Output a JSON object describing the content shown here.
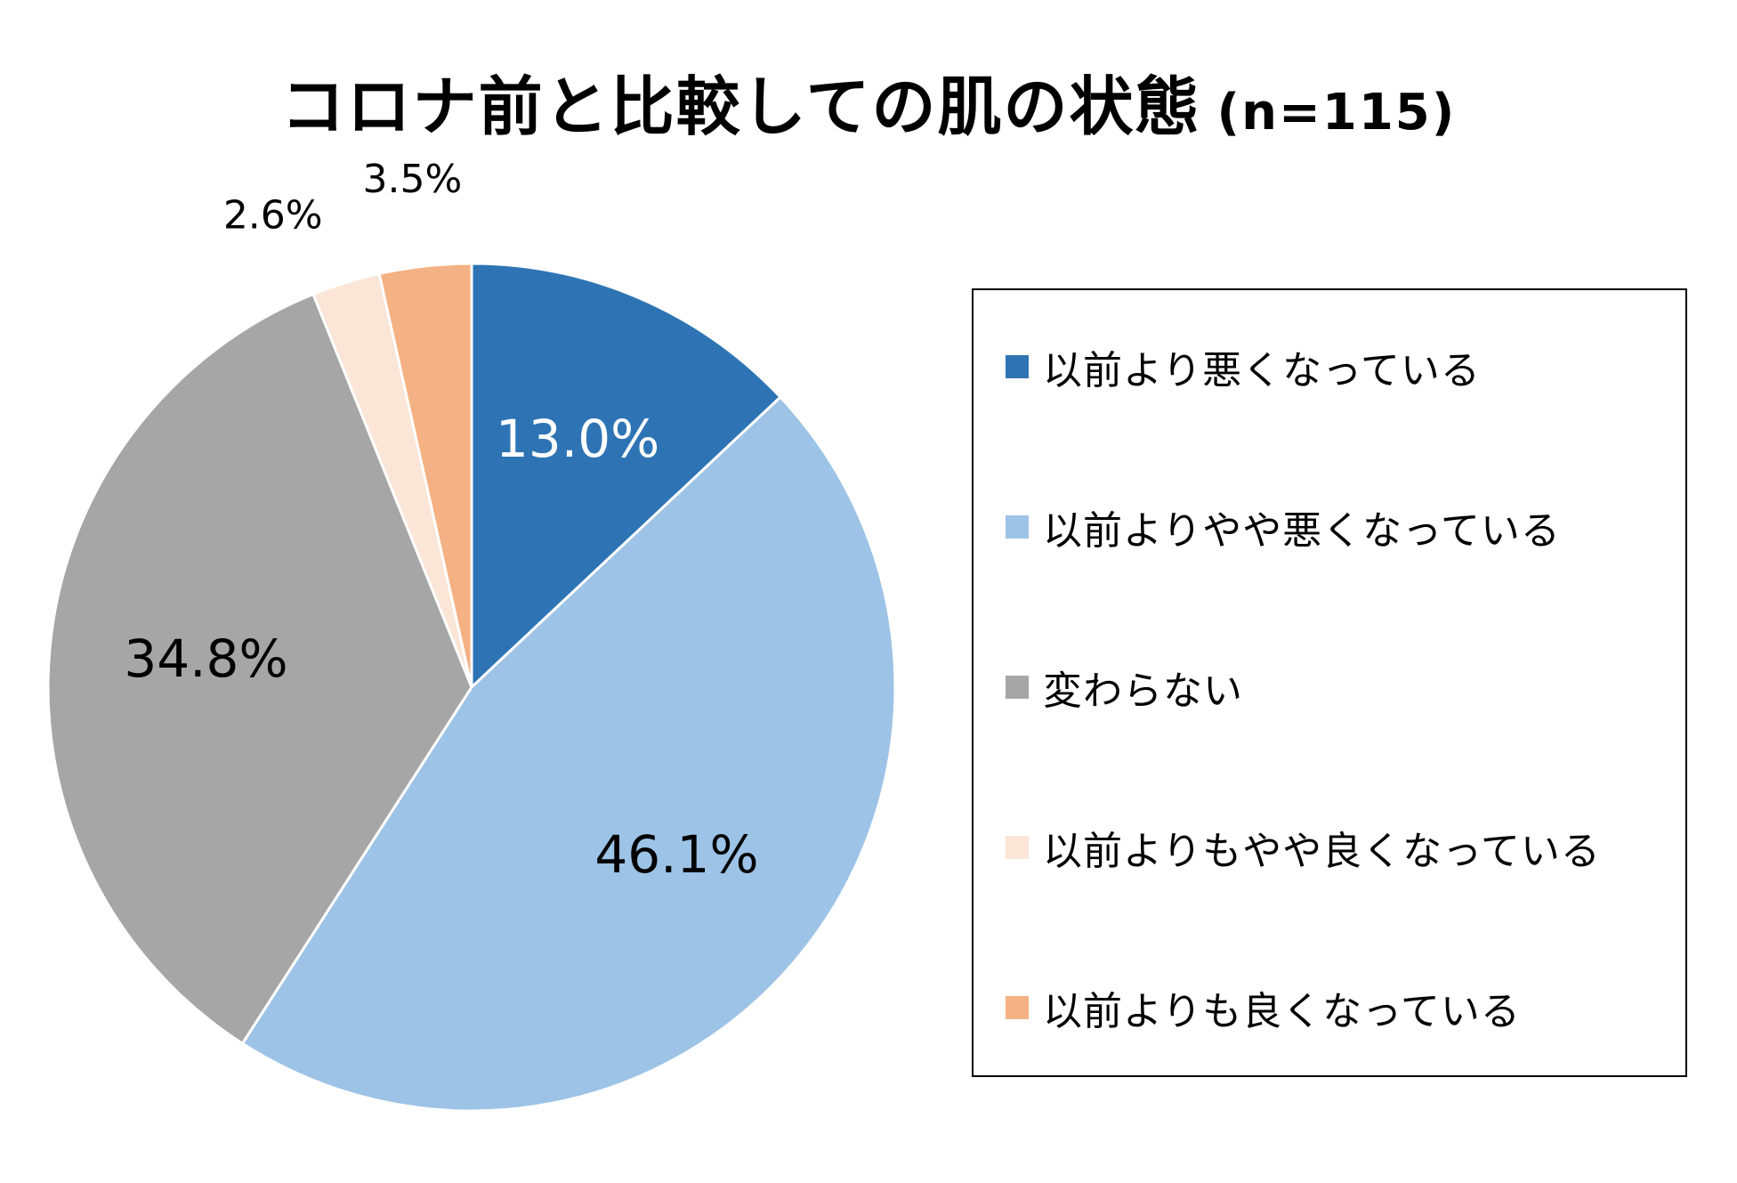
{
  "chart_data": {
    "type": "pie",
    "title": "コロナ前と比較しての肌の状態",
    "title_suffix": "(n=115)",
    "categories": [
      "以前より悪くなっている",
      "以前よりやや悪くなっている",
      "変わらない",
      "以前よりもやや良くなっている",
      "以前よりも良くなっている"
    ],
    "values": [
      13.0,
      46.1,
      34.8,
      2.6,
      3.5
    ],
    "value_labels": [
      "13.0%",
      "46.1%",
      "34.8%",
      "2.6%",
      "3.5%"
    ],
    "colors": [
      "#2e74b5",
      "#9dc3e6",
      "#a6a6a6",
      "#fbe5d6",
      "#f4b183"
    ],
    "label_colors": [
      "#ffffff",
      "#000000",
      "#000000",
      "#000000",
      "#000000"
    ],
    "legend_position": "right",
    "start_angle": "12 o'clock",
    "direction": "clockwise"
  }
}
